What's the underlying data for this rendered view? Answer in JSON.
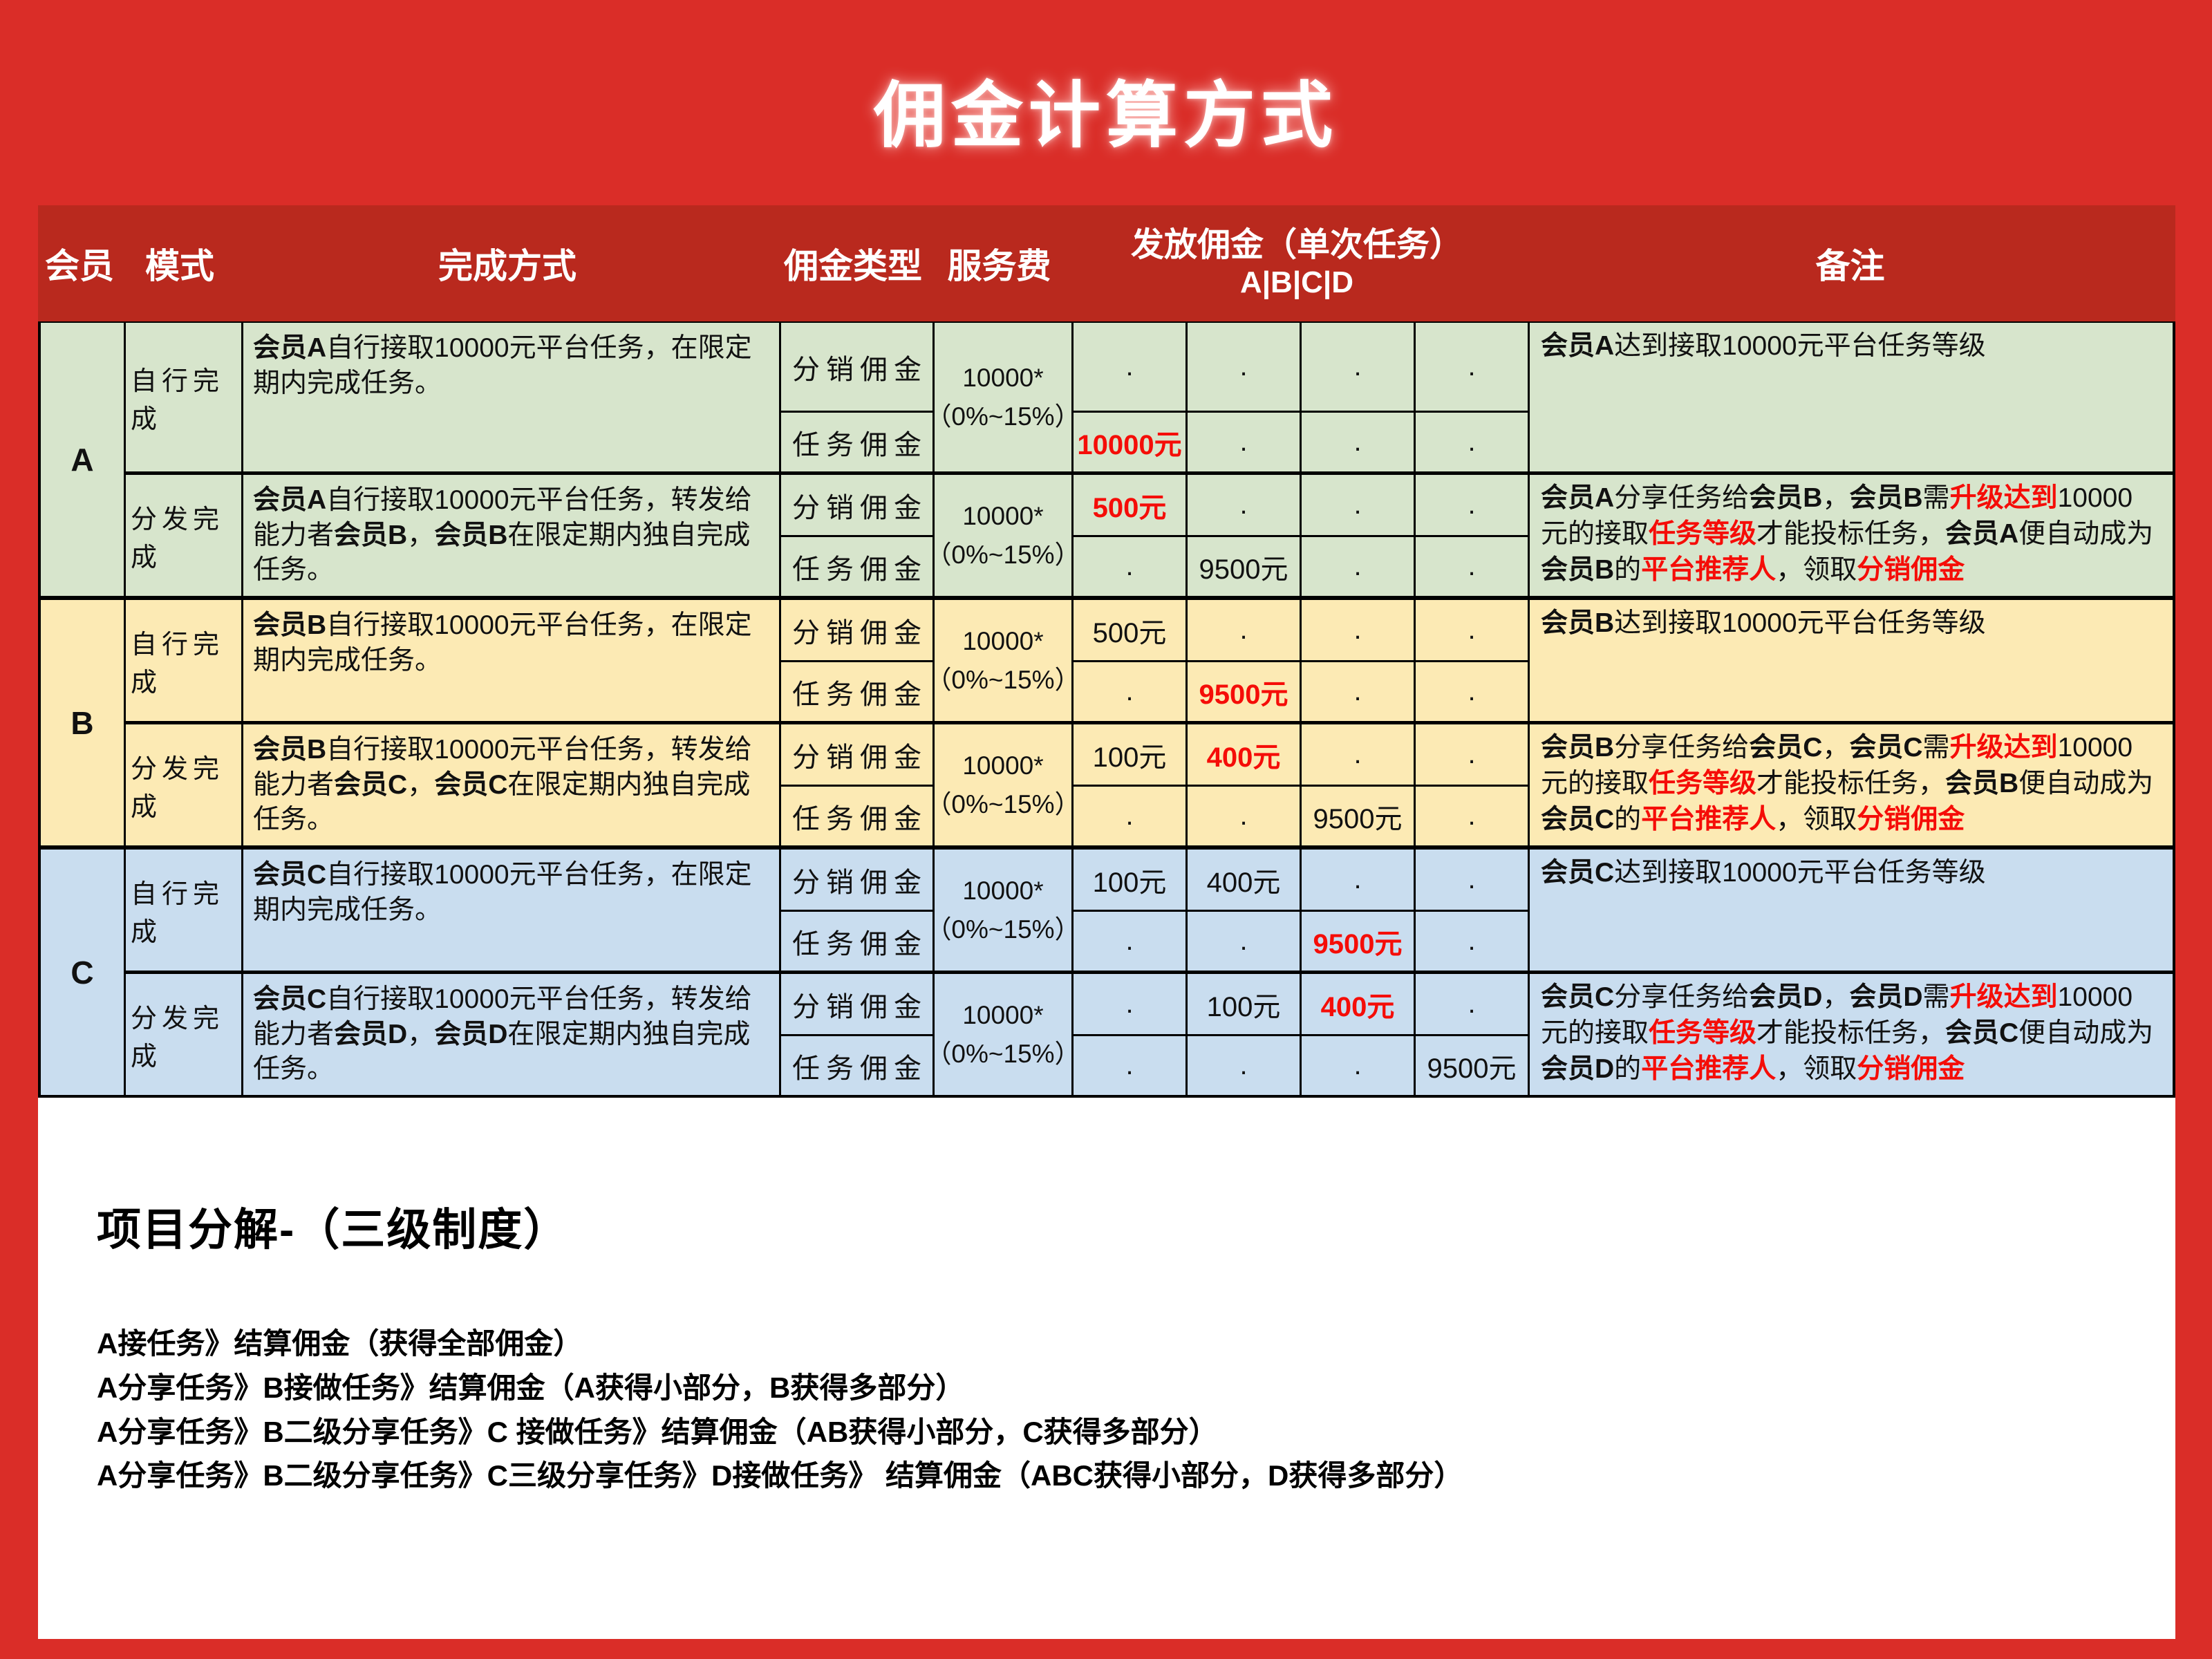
{
  "page": {
    "title": "佣金计算方式"
  },
  "colors": {
    "page_bg": "#da2d28",
    "table_header_bg": "#b9291e",
    "highlight_red": "#f50d08",
    "section_a_bg": "#d7e5cc",
    "section_b_bg": "#fceab4",
    "section_c_bg": "#c9ddef"
  },
  "table": {
    "headers": {
      "member": "会员",
      "mode": "模式",
      "method": "完成方式",
      "type": "佣金类型",
      "fee": "服务费",
      "payout_line1": "发放佣金（单次任务）",
      "payout_line2": "A|B|C|D",
      "remark": "备注"
    },
    "sections": [
      {
        "member": "A",
        "bg": "#d7e5cc",
        "halves": [
          {
            "mode": "自行完成",
            "method": [
              {
                "t": "会员A",
                "b": true
              },
              {
                "t": "自行接取10000元平台任务，在限定期内完成任务。"
              }
            ],
            "fee": [
              "10000*",
              "（0%~15%）"
            ],
            "rows": [
              {
                "type": "分销佣金",
                "values": [
                  {
                    "t": "."
                  },
                  {
                    "t": "."
                  },
                  {
                    "t": "."
                  },
                  {
                    "t": "."
                  }
                ]
              },
              {
                "type": "任务佣金",
                "values": [
                  {
                    "t": "10000元",
                    "red": true
                  },
                  {
                    "t": "."
                  },
                  {
                    "t": "."
                  },
                  {
                    "t": "."
                  }
                ]
              }
            ],
            "remark": [
              {
                "t": "会员A",
                "b": true
              },
              {
                "t": "达到接取10000元平台任务等级"
              }
            ]
          },
          {
            "mode": "分发完成",
            "method": [
              {
                "t": "会员A",
                "b": true
              },
              {
                "t": "自行接取10000元平台任务，转发给能力者"
              },
              {
                "t": "会员B",
                "b": true
              },
              {
                "t": "，"
              },
              {
                "t": "会员B",
                "b": true
              },
              {
                "t": "在限定期内独自完成任务。"
              }
            ],
            "fee": [
              "10000*",
              "（0%~15%）"
            ],
            "rows": [
              {
                "type": "分销佣金",
                "values": [
                  {
                    "t": "500元",
                    "red": true
                  },
                  {
                    "t": "."
                  },
                  {
                    "t": "."
                  },
                  {
                    "t": "."
                  }
                ]
              },
              {
                "type": "任务佣金",
                "values": [
                  {
                    "t": "."
                  },
                  {
                    "t": "9500元"
                  },
                  {
                    "t": "."
                  },
                  {
                    "t": "."
                  }
                ]
              }
            ],
            "remark": [
              {
                "t": "会员A",
                "b": true
              },
              {
                "t": "分享任务给"
              },
              {
                "t": "会员B",
                "b": true
              },
              {
                "t": "，"
              },
              {
                "t": "会员B",
                "b": true
              },
              {
                "t": "需"
              },
              {
                "t": "升级达到",
                "r": true
              },
              {
                "t": "10000元的接取"
              },
              {
                "t": "任务等级",
                "r": true
              },
              {
                "t": "才能投标任务，"
              },
              {
                "t": "会员A",
                "b": true
              },
              {
                "t": "便自动成为"
              },
              {
                "t": "会员B",
                "b": true
              },
              {
                "t": "的"
              },
              {
                "t": "平台推荐人",
                "r": true
              },
              {
                "t": "，领取"
              },
              {
                "t": "分销佣金",
                "r": true
              }
            ]
          }
        ]
      },
      {
        "member": "B",
        "bg": "#fceab4",
        "halves": [
          {
            "mode": "自行完成",
            "method": [
              {
                "t": "会员B",
                "b": true
              },
              {
                "t": "自行接取10000元平台任务，在限定期内完成任务。"
              }
            ],
            "fee": [
              "10000*",
              "（0%~15%）"
            ],
            "rows": [
              {
                "type": "分销佣金",
                "values": [
                  {
                    "t": "500元"
                  },
                  {
                    "t": "."
                  },
                  {
                    "t": "."
                  },
                  {
                    "t": "."
                  }
                ]
              },
              {
                "type": "任务佣金",
                "values": [
                  {
                    "t": "."
                  },
                  {
                    "t": "9500元",
                    "red": true
                  },
                  {
                    "t": "."
                  },
                  {
                    "t": "."
                  }
                ]
              }
            ],
            "remark": [
              {
                "t": "会员B",
                "b": true
              },
              {
                "t": "达到接取10000元平台任务等级"
              }
            ]
          },
          {
            "mode": "分发完成",
            "method": [
              {
                "t": "会员B",
                "b": true
              },
              {
                "t": "自行接取10000元平台任务，转发给能力者"
              },
              {
                "t": "会员C",
                "b": true
              },
              {
                "t": "，"
              },
              {
                "t": "会员C",
                "b": true
              },
              {
                "t": "在限定期内独自完成任务。"
              }
            ],
            "fee": [
              "10000*",
              "（0%~15%）"
            ],
            "rows": [
              {
                "type": "分销佣金",
                "values": [
                  {
                    "t": "100元"
                  },
                  {
                    "t": "400元",
                    "red": true
                  },
                  {
                    "t": "."
                  },
                  {
                    "t": "."
                  }
                ]
              },
              {
                "type": "任务佣金",
                "values": [
                  {
                    "t": "."
                  },
                  {
                    "t": "."
                  },
                  {
                    "t": "9500元"
                  },
                  {
                    "t": "."
                  }
                ]
              }
            ],
            "remark": [
              {
                "t": "会员B",
                "b": true
              },
              {
                "t": "分享任务给"
              },
              {
                "t": "会员C",
                "b": true
              },
              {
                "t": "，"
              },
              {
                "t": "会员C",
                "b": true
              },
              {
                "t": "需"
              },
              {
                "t": "升级达到",
                "r": true
              },
              {
                "t": "10000元的接取"
              },
              {
                "t": "任务等级",
                "r": true
              },
              {
                "t": "才能投标任务，"
              },
              {
                "t": "会员B",
                "b": true
              },
              {
                "t": "便自动成为"
              },
              {
                "t": "会员C",
                "b": true
              },
              {
                "t": "的"
              },
              {
                "t": "平台推荐人",
                "r": true
              },
              {
                "t": "，领取"
              },
              {
                "t": "分销佣金",
                "r": true
              }
            ]
          }
        ]
      },
      {
        "member": "C",
        "bg": "#c9ddef",
        "halves": [
          {
            "mode": "自行完成",
            "method": [
              {
                "t": "会员C",
                "b": true
              },
              {
                "t": "自行接取10000元平台任务，在限定期内完成任务。"
              }
            ],
            "fee": [
              "10000*",
              "（0%~15%）"
            ],
            "rows": [
              {
                "type": "分销佣金",
                "values": [
                  {
                    "t": "100元"
                  },
                  {
                    "t": "400元"
                  },
                  {
                    "t": "."
                  },
                  {
                    "t": "."
                  }
                ]
              },
              {
                "type": "任务佣金",
                "values": [
                  {
                    "t": "."
                  },
                  {
                    "t": "."
                  },
                  {
                    "t": "9500元",
                    "red": true
                  },
                  {
                    "t": "."
                  }
                ]
              }
            ],
            "remark": [
              {
                "t": "会员C",
                "b": true
              },
              {
                "t": "达到接取10000元平台任务等级"
              }
            ]
          },
          {
            "mode": "分发完成",
            "method": [
              {
                "t": "会员C",
                "b": true
              },
              {
                "t": "自行接取10000元平台任务，转发给能力者"
              },
              {
                "t": "会员D",
                "b": true
              },
              {
                "t": "，"
              },
              {
                "t": "会员D",
                "b": true
              },
              {
                "t": "在限定期内独自完成任务。"
              }
            ],
            "fee": [
              "10000*",
              "（0%~15%）"
            ],
            "rows": [
              {
                "type": "分销佣金",
                "values": [
                  {
                    "t": "."
                  },
                  {
                    "t": "100元"
                  },
                  {
                    "t": "400元",
                    "red": true
                  },
                  {
                    "t": "."
                  }
                ]
              },
              {
                "type": "任务佣金",
                "values": [
                  {
                    "t": "."
                  },
                  {
                    "t": "."
                  },
                  {
                    "t": "."
                  },
                  {
                    "t": "9500元"
                  }
                ]
              }
            ],
            "remark": [
              {
                "t": "会员C",
                "b": true
              },
              {
                "t": "分享任务给"
              },
              {
                "t": "会员D",
                "b": true
              },
              {
                "t": "，"
              },
              {
                "t": "会员D",
                "b": true
              },
              {
                "t": "需"
              },
              {
                "t": "升级达到",
                "r": true
              },
              {
                "t": "10000元的接取"
              },
              {
                "t": "任务等级",
                "r": true
              },
              {
                "t": "才能投标任务，"
              },
              {
                "t": "会员C",
                "b": true
              },
              {
                "t": "便自动成为"
              },
              {
                "t": "会员D",
                "b": true
              },
              {
                "t": "的"
              },
              {
                "t": "平台推荐人",
                "r": true
              },
              {
                "t": "，领取"
              },
              {
                "t": "分销佣金",
                "r": true
              }
            ]
          }
        ]
      }
    ]
  },
  "breakdown": {
    "heading": "项目分解-（三级制度）",
    "lines": [
      "A接任务》结算佣金（获得全部佣金）",
      "A分享任务》B接做任务》结算佣金（A获得小部分，B获得多部分）",
      "A分享任务》B二级分享任务》C 接做任务》结算佣金（AB获得小部分，C获得多部分）",
      "A分享任务》B二级分享任务》C三级分享任务》D接做任务》 结算佣金（ABC获得小部分，D获得多部分）"
    ]
  }
}
